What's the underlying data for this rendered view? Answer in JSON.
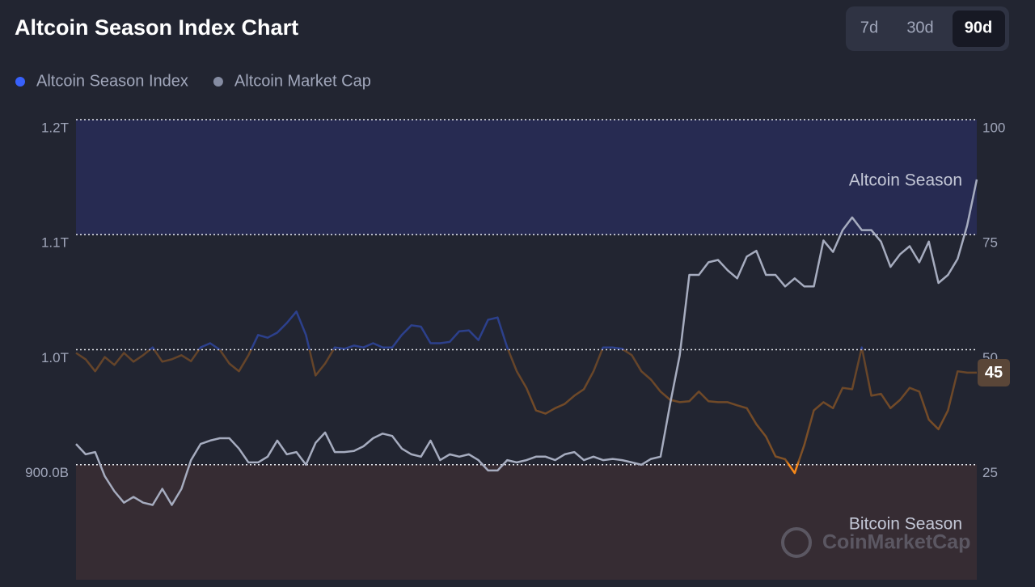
{
  "chart_data": {
    "type": "line",
    "title": "Altcoin Season Index Chart",
    "timeframes": [
      "7d",
      "30d",
      "90d"
    ],
    "selected_timeframe": "90d",
    "series": [
      {
        "name": "Altcoin Season Index",
        "color": "#3861fb",
        "low_color": "#f68819",
        "axis": "y2",
        "values": [
          49.3,
          47.9,
          45.3,
          48.4,
          46.7,
          49.3,
          47.4,
          48.8,
          50.5,
          47.4,
          47.9,
          48.8,
          47.5,
          50.5,
          51.4,
          50,
          47,
          45.3,
          48.8,
          53.2,
          52.6,
          53.7,
          55.8,
          58.3,
          53.2,
          44.4,
          47,
          50.5,
          50.2,
          50.9,
          50.5,
          51.4,
          50.5,
          50.5,
          53.2,
          55.3,
          55,
          51.4,
          51.4,
          51.7,
          54,
          54.2,
          52.1,
          56.5,
          57,
          50.5,
          45.3,
          41.7,
          36.8,
          36.1,
          37.3,
          38.2,
          40,
          41.4,
          45.3,
          50.5,
          50.5,
          50.2,
          48.8,
          45.3,
          43.5,
          40.9,
          39.1,
          38.6,
          38.8,
          40.9,
          38.8,
          38.6,
          38.6,
          37.9,
          37.3,
          33.8,
          31.1,
          26.8,
          26.2,
          23.2,
          29.3,
          36.8,
          38.6,
          37.3,
          41.7,
          41.4,
          50.5,
          40,
          40.4,
          37.3,
          39.1,
          41.7,
          40.9,
          34.8,
          32.7,
          36.8,
          45.3,
          45,
          45
        ]
      },
      {
        "name": "Altcoin Market Cap",
        "color": "#858ca2",
        "values": [
          918000000000.0,
          909000000000.0,
          911000000000.0,
          890000000000.0,
          877000000000.0,
          867000000000.0,
          872000000000.0,
          867000000000.0,
          865000000000.0,
          879000000000.0,
          865000000000.0,
          879000000000.0,
          904000000000.0,
          918000000000.0,
          921000000000.0,
          923000000000.0,
          923000000000.0,
          914000000000.0,
          902000000000.0,
          902000000000.0,
          907000000000.0,
          921000000000.0,
          909000000000.0,
          911000000000.0,
          900000000000.0,
          919000000000.0,
          928000000000.0,
          911000000000.0,
          911000000000.0,
          912000000000.0,
          916000000000.0,
          923000000000.0,
          927000000000.0,
          925000000000.0,
          914000000000.0,
          909000000000.0,
          907000000000.0,
          921000000000.0,
          904000000000.0,
          909000000000.0,
          907000000000.0,
          909000000000.0,
          904000000000.0,
          895000000000.0,
          895000000000.0,
          904000000000.0,
          902000000000.0,
          904000000000.0,
          907000000000.0,
          907000000000.0,
          904000000000.0,
          909000000000.0,
          911000000000.0,
          904000000000.0,
          907000000000.0,
          904000000000.0,
          905000000000.0,
          904000000000.0,
          902000000000.0,
          900000000000.0,
          905000000000.0,
          907000000000.0,
          953000000000.0,
          995000000000.0,
          1065000000000.0,
          1065000000000.0,
          1076000000000.0,
          1078000000000.0,
          1069000000000.0,
          1062000000000.0,
          1081000000000.0,
          1086000000000.0,
          1065000000000.0,
          1065000000000.0,
          1055000000000.0,
          1062000000000.0,
          1055000000000.0,
          1055000000000.0,
          1095000000000.0,
          1085000000000.0,
          1104000000000.0,
          1115000000000.0,
          1104000000000.0,
          1104000000000.0,
          1094000000000.0,
          1072000000000.0,
          1083000000000.0,
          1090000000000.0,
          1076000000000.0,
          1094000000000.0,
          1058000000000.0,
          1065000000000.0,
          1079000000000.0,
          1108000000000.0,
          1148000000000.0
        ]
      }
    ],
    "ylim": [
      800000000000.0,
      1200000000000.0
    ],
    "yticks": [
      {
        "value": 1200000000000.0,
        "label": "1.2T"
      },
      {
        "value": 1100000000000.0,
        "label": "1.1T"
      },
      {
        "value": 1000000000000.0,
        "label": "1.0T"
      },
      {
        "value": 900000000000.0,
        "label": "900.0B"
      }
    ],
    "y2lim": [
      0,
      100
    ],
    "y2ticks": [
      100,
      75,
      50,
      25
    ],
    "grid": true,
    "zones": [
      {
        "label": "Altcoin Season",
        "from": 75,
        "to": 100,
        "color": "#272b52"
      },
      {
        "label": "Bitcoin Season",
        "from": 0,
        "to": 25,
        "color": "#362c33"
      }
    ],
    "watermark": "CoinMarketCap"
  }
}
